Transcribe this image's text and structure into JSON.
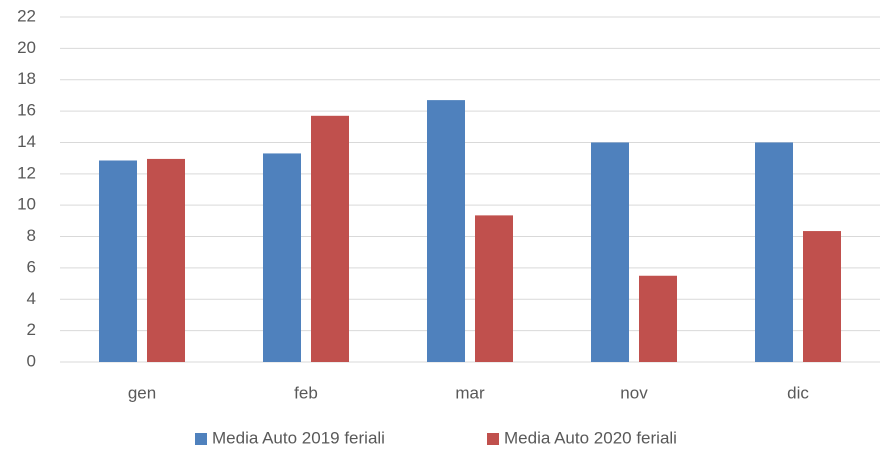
{
  "chart_data": {
    "type": "bar",
    "categories": [
      "gen",
      "feb",
      "mar",
      "nov",
      "dic"
    ],
    "series": [
      {
        "name": "Media Auto 2019 feriali",
        "color": "#4f81bd",
        "values": [
          12.85,
          13.3,
          16.7,
          14.0,
          14.0
        ]
      },
      {
        "name": "Media Auto 2020 feriali",
        "color": "#c0504d",
        "values": [
          12.95,
          15.7,
          9.35,
          5.5,
          8.35
        ]
      }
    ],
    "ylim": [
      0,
      22
    ],
    "yticks": [
      0,
      2,
      4,
      6,
      8,
      10,
      12,
      14,
      16,
      18,
      20,
      22
    ],
    "grid": true,
    "legend": "bottom"
  }
}
